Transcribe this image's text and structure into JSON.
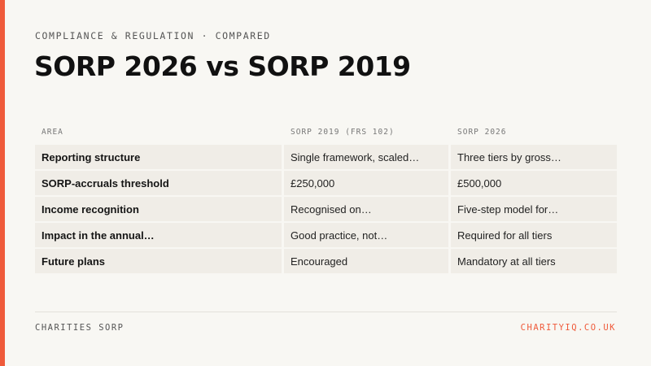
{
  "slide": {
    "eyebrow": "COMPLIANCE & REGULATION · COMPARED",
    "title": "SORP 2026 vs SORP 2019",
    "accent_color": "#ef5a3a"
  },
  "table": {
    "headers": [
      "AREA",
      "SORP 2019 (FRS 102)",
      "SORP 2026"
    ],
    "rows": [
      [
        "Reporting structure",
        "Single framework, scaled…",
        "Three tiers by gross…"
      ],
      [
        "SORP-accruals threshold",
        "£250,000",
        "£500,000"
      ],
      [
        "Income recognition",
        "Recognised on…",
        "Five-step model for…"
      ],
      [
        "Impact in the annual…",
        "Good practice, not…",
        "Required for all tiers"
      ],
      [
        "Future plans",
        "Encouraged",
        "Mandatory at all tiers"
      ]
    ]
  },
  "footer": {
    "left": "CHARITIES SORP",
    "right": "CHARITYIQ.CO.UK"
  }
}
